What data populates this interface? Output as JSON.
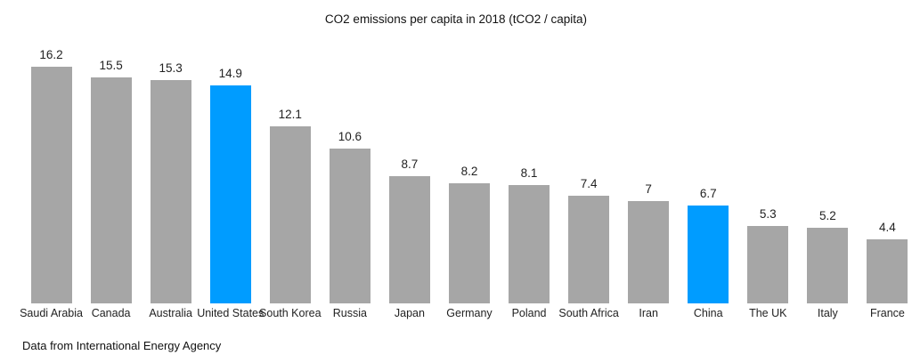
{
  "chart_data": {
    "type": "bar",
    "title": "CO2 emissions per capita in 2018 (tCO2 / capita)",
    "categories": [
      "Saudi Arabia",
      "Canada",
      "Australia",
      "United States",
      "South Korea",
      "Russia",
      "Japan",
      "Germany",
      "Poland",
      "South Africa",
      "Iran",
      "China",
      "The UK",
      "Italy",
      "France"
    ],
    "values": [
      16.2,
      15.5,
      15.3,
      14.9,
      12.1,
      10.6,
      8.7,
      8.2,
      8.1,
      7.4,
      7,
      6.7,
      5.3,
      5.2,
      4.4
    ],
    "highlighted_categories": [
      "United States",
      "China"
    ],
    "bar_color": "#A6A6A6",
    "highlight_color": "#009CFF",
    "xlabel": "",
    "ylabel": "",
    "ylim": [
      0,
      16.6
    ],
    "grid": false,
    "legend": false,
    "value_labels_shown": true,
    "source_note": "Data from International Energy Agency"
  }
}
